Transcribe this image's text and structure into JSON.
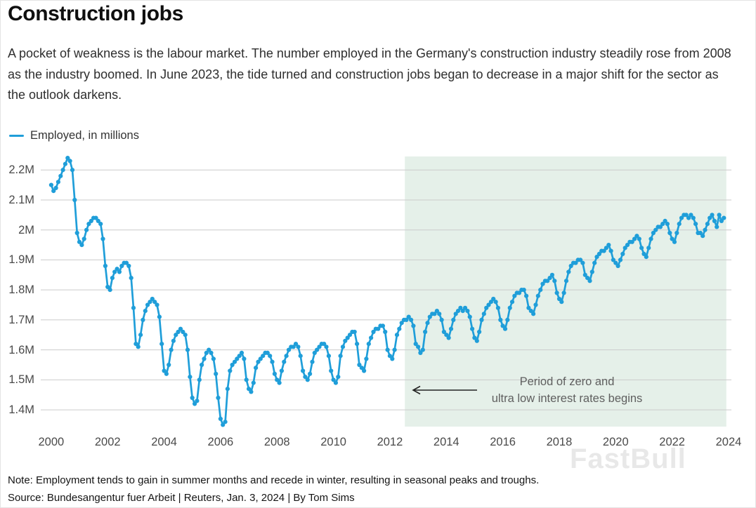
{
  "header": {
    "title": "Construction jobs",
    "subtitle": "A pocket of weakness is the labour market. The number employed in the Germany's construction industry steadily rose from 2008 as the industry boomed. In June 2023, the tide turned and construction jobs began to decrease in a major shift for the sector as the outlook darkens."
  },
  "legend": {
    "label": "Employed, in millions"
  },
  "annotation": {
    "line1": "Period of zero and",
    "line2": "ultra low interest rates begins"
  },
  "watermark": "FastBull",
  "footer": {
    "note": "Note: Employment tends to gain in summer months and recede in winter, resulting in seasonal peaks and troughs.",
    "source": "Source: Bundesangentur fuer Arbeit | Reuters, Jan. 3, 2024 | By Tom Sims"
  },
  "colors": {
    "line": "#1f9ed9",
    "grid": "#cbcbcb",
    "highlight": "#e5f0e9",
    "arrow": "#222222"
  },
  "chart_data": {
    "type": "line",
    "title": "Employed, in millions",
    "xlabel": "",
    "ylabel": "Employed, in millions",
    "grid": true,
    "legend_position": "top-left",
    "x_tick_years": [
      2000,
      2002,
      2004,
      2006,
      2008,
      2010,
      2012,
      2014,
      2016,
      2018,
      2020,
      2022,
      2024
    ],
    "y_ticks": [
      {
        "label": "2.2M",
        "value": 2.2
      },
      {
        "label": "2.1M",
        "value": 2.1
      },
      {
        "label": "2M",
        "value": 2.0
      },
      {
        "label": "1.9M",
        "value": 1.9
      },
      {
        "label": "1.8M",
        "value": 1.8
      },
      {
        "label": "1.7M",
        "value": 1.7
      },
      {
        "label": "1.6M",
        "value": 1.6
      },
      {
        "label": "1.5M",
        "value": 1.5
      },
      {
        "label": "1.4M",
        "value": 1.4
      }
    ],
    "xlim": [
      1999.63,
      2024.1
    ],
    "ylim": [
      1.344,
      2.245
    ],
    "highlight_region": {
      "x_start": 2012.53,
      "x_end": 2023.92,
      "label": "Period of zero and ultra low interest rates begins"
    },
    "series": [
      {
        "name": "Employed, in millions",
        "unit": "millions",
        "start_month": "2000-01",
        "monthly_by_year": [
          {
            "year": 2000,
            "values": [
              2.15,
              2.13,
              2.14,
              2.16,
              2.18,
              2.2,
              2.22,
              2.24,
              2.23,
              2.2,
              2.1,
              1.99
            ]
          },
          {
            "year": 2001,
            "values": [
              1.96,
              1.95,
              1.97,
              2.0,
              2.02,
              2.03,
              2.04,
              2.04,
              2.03,
              2.02,
              1.97,
              1.88
            ]
          },
          {
            "year": 2002,
            "values": [
              1.81,
              1.8,
              1.84,
              1.86,
              1.87,
              1.86,
              1.88,
              1.89,
              1.89,
              1.88,
              1.84,
              1.74
            ]
          },
          {
            "year": 2003,
            "values": [
              1.62,
              1.61,
              1.65,
              1.7,
              1.73,
              1.75,
              1.76,
              1.77,
              1.76,
              1.75,
              1.71,
              1.62
            ]
          },
          {
            "year": 2004,
            "values": [
              1.53,
              1.52,
              1.55,
              1.6,
              1.63,
              1.65,
              1.66,
              1.67,
              1.66,
              1.65,
              1.6,
              1.51
            ]
          },
          {
            "year": 2005,
            "values": [
              1.44,
              1.42,
              1.43,
              1.5,
              1.55,
              1.57,
              1.59,
              1.6,
              1.59,
              1.57,
              1.52,
              1.44
            ]
          },
          {
            "year": 2006,
            "values": [
              1.37,
              1.35,
              1.36,
              1.47,
              1.53,
              1.55,
              1.56,
              1.57,
              1.58,
              1.59,
              1.57,
              1.5
            ]
          },
          {
            "year": 2007,
            "values": [
              1.47,
              1.46,
              1.49,
              1.54,
              1.56,
              1.57,
              1.58,
              1.59,
              1.59,
              1.58,
              1.56,
              1.52
            ]
          },
          {
            "year": 2008,
            "values": [
              1.5,
              1.49,
              1.53,
              1.56,
              1.58,
              1.6,
              1.61,
              1.61,
              1.62,
              1.61,
              1.58,
              1.53
            ]
          },
          {
            "year": 2009,
            "values": [
              1.51,
              1.5,
              1.52,
              1.56,
              1.59,
              1.6,
              1.61,
              1.62,
              1.62,
              1.61,
              1.58,
              1.53
            ]
          },
          {
            "year": 2010,
            "values": [
              1.5,
              1.49,
              1.51,
              1.58,
              1.61,
              1.63,
              1.64,
              1.65,
              1.66,
              1.66,
              1.62,
              1.55
            ]
          },
          {
            "year": 2011,
            "values": [
              1.54,
              1.53,
              1.57,
              1.62,
              1.64,
              1.66,
              1.67,
              1.67,
              1.68,
              1.68,
              1.66,
              1.6
            ]
          },
          {
            "year": 2012,
            "values": [
              1.58,
              1.57,
              1.6,
              1.65,
              1.67,
              1.69,
              1.7,
              1.7,
              1.71,
              1.7,
              1.68,
              1.62
            ]
          },
          {
            "year": 2013,
            "values": [
              1.61,
              1.59,
              1.6,
              1.66,
              1.69,
              1.71,
              1.72,
              1.72,
              1.73,
              1.72,
              1.7,
              1.66
            ]
          },
          {
            "year": 2014,
            "values": [
              1.65,
              1.64,
              1.67,
              1.7,
              1.72,
              1.73,
              1.74,
              1.73,
              1.74,
              1.73,
              1.71,
              1.67
            ]
          },
          {
            "year": 2015,
            "values": [
              1.64,
              1.63,
              1.66,
              1.7,
              1.72,
              1.74,
              1.75,
              1.76,
              1.77,
              1.76,
              1.74,
              1.7
            ]
          },
          {
            "year": 2016,
            "values": [
              1.68,
              1.67,
              1.7,
              1.74,
              1.76,
              1.78,
              1.79,
              1.79,
              1.8,
              1.8,
              1.78,
              1.74
            ]
          },
          {
            "year": 2017,
            "values": [
              1.73,
              1.72,
              1.75,
              1.78,
              1.8,
              1.82,
              1.83,
              1.83,
              1.84,
              1.85,
              1.83,
              1.79
            ]
          },
          {
            "year": 2018,
            "values": [
              1.77,
              1.76,
              1.79,
              1.83,
              1.86,
              1.88,
              1.89,
              1.89,
              1.9,
              1.9,
              1.89,
              1.85
            ]
          },
          {
            "year": 2019,
            "values": [
              1.84,
              1.83,
              1.86,
              1.89,
              1.91,
              1.92,
              1.93,
              1.93,
              1.94,
              1.95,
              1.93,
              1.9
            ]
          },
          {
            "year": 2020,
            "values": [
              1.89,
              1.88,
              1.9,
              1.92,
              1.94,
              1.95,
              1.96,
              1.96,
              1.97,
              1.98,
              1.97,
              1.94
            ]
          },
          {
            "year": 2021,
            "values": [
              1.92,
              1.91,
              1.94,
              1.97,
              1.99,
              2.0,
              2.01,
              2.01,
              2.02,
              2.03,
              2.02,
              1.99
            ]
          },
          {
            "year": 2022,
            "values": [
              1.97,
              1.96,
              1.99,
              2.02,
              2.04,
              2.05,
              2.05,
              2.04,
              2.05,
              2.04,
              2.02,
              1.99
            ]
          },
          {
            "year": 2023,
            "values": [
              1.99,
              1.98,
              2.0,
              2.02,
              2.04,
              2.05,
              2.03,
              2.01,
              2.05,
              2.03,
              2.04
            ]
          }
        ]
      }
    ]
  }
}
